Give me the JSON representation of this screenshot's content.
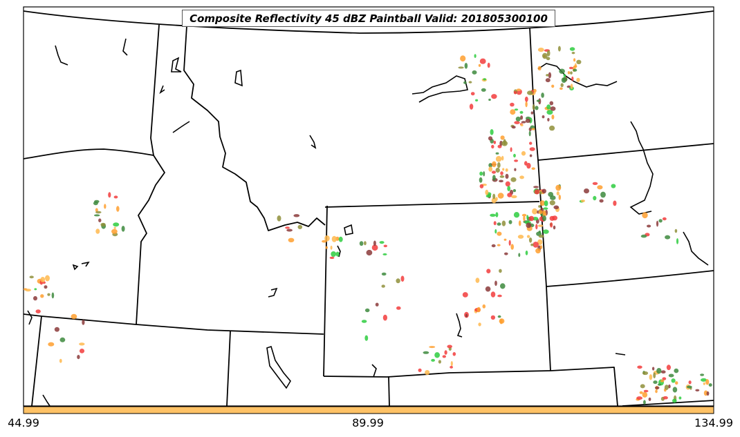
{
  "title": "Composite Reflectivity 45 dBZ Paintball Valid: 201805300100",
  "colorbar": {
    "color": "#ffc266",
    "ticks": [
      "44.99",
      "89.99",
      "134.99"
    ]
  },
  "colors": {
    "paint_red": "#f23c3c",
    "paint_orange": "#ff9f2e",
    "paint_light_orange": "#ffb84d",
    "paint_brown": "#8b3a3a",
    "paint_olive": "#8f8f3a",
    "paint_green": "#2ecc40",
    "paint_dark_green": "#3d8a3d",
    "border": "#000000"
  }
}
